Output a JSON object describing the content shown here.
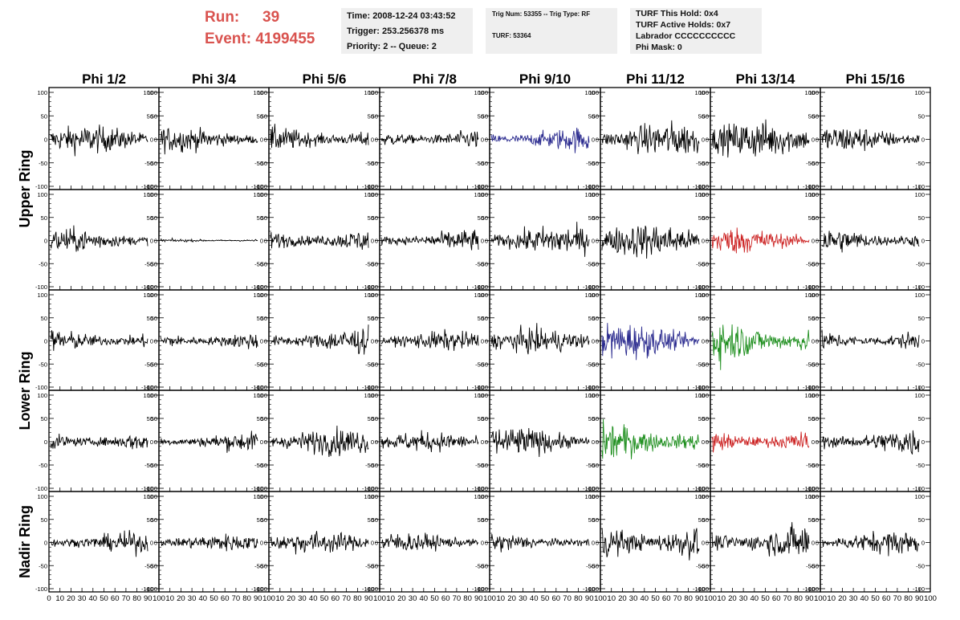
{
  "header": {
    "run_label": "Run:",
    "run_value": "39",
    "event_label": "Event:",
    "event_value": "4199455",
    "time": "Time: 2008-12-24 03:43:52",
    "trigger": "Trigger: 253.256378 ms",
    "priority": "Priority: 2 -- Queue: 2",
    "trig_num": "Trig Num: 53355 -- Trig Type: RF",
    "turf": "TURF: 53364",
    "turf_this_hold": "TURF This Hold: 0x4",
    "turf_active_holds": "TURF Active Holds: 0x7",
    "labrador": "Labrador CCCCCCCCCC",
    "phi_mask": "Phi Mask: 0"
  },
  "colors": {
    "red_text": "#d9534f",
    "normal_trace": "#000000",
    "blue_trace": "#2b2b8f",
    "red_trace": "#cc2222",
    "green_trace": "#1f8f1f"
  },
  "chart_data": {
    "type": "line",
    "columns": [
      "Phi 1/2",
      "Phi 3/4",
      "Phi 5/6",
      "Phi 7/8",
      "Phi 9/10",
      "Phi 11/12",
      "Phi 13/14",
      "Phi 15/16"
    ],
    "rows": [
      "Upper Ring",
      "Lower Ring",
      "Nadir Ring"
    ],
    "x_ticks": [
      "0",
      "10",
      "20",
      "30",
      "40",
      "50",
      "60",
      "70",
      "80",
      "90",
      "100"
    ],
    "y_ticks": [
      "100",
      "50",
      "0",
      "-50",
      "-100"
    ],
    "xlim": [
      0,
      100
    ],
    "ylim": [
      -100,
      100
    ],
    "grid": false,
    "panel_rows": 5,
    "note_amplitudes": [
      [
        22,
        20,
        22,
        18,
        20,
        28,
        30,
        22
      ],
      [
        20,
        3,
        22,
        18,
        24,
        28,
        22,
        22
      ],
      [
        20,
        18,
        22,
        16,
        20,
        30,
        38,
        20
      ],
      [
        18,
        16,
        22,
        16,
        24,
        32,
        22,
        24
      ],
      [
        18,
        14,
        18,
        16,
        16,
        36,
        30,
        20
      ]
    ],
    "trace_colors": [
      [
        "normal",
        "normal",
        "normal",
        "normal",
        "blue",
        "normal",
        "normal",
        "normal"
      ],
      [
        "normal",
        "normal",
        "normal",
        "normal",
        "normal",
        "normal",
        "red",
        "normal"
      ],
      [
        "normal",
        "normal",
        "normal",
        "normal",
        "normal",
        "blue",
        "green",
        "normal"
      ],
      [
        "normal",
        "normal",
        "normal",
        "normal",
        "normal",
        "green",
        "red",
        "normal"
      ],
      [
        "normal",
        "normal",
        "normal",
        "normal",
        "normal",
        "normal",
        "normal",
        "normal"
      ]
    ]
  }
}
